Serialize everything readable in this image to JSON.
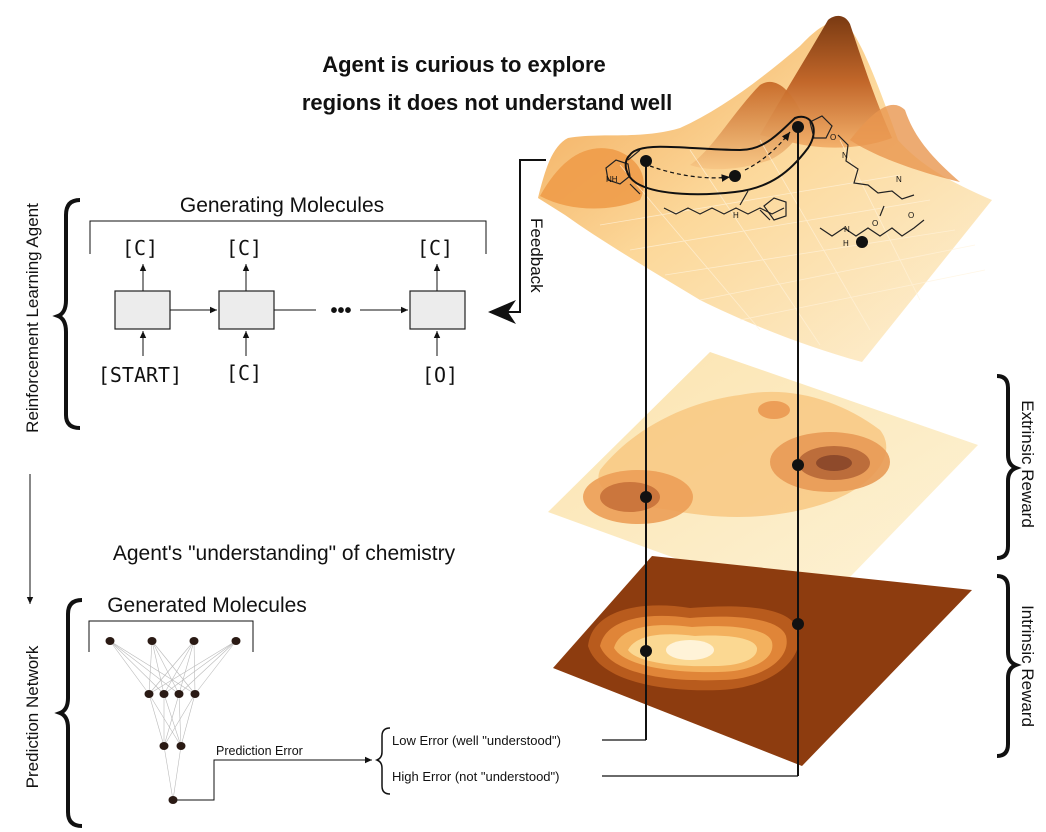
{
  "headline": {
    "line1": "Agent is curious to explore",
    "line2": "regions it does not understand well"
  },
  "rl_agent": {
    "side_label": "Reinforcement Learning Agent",
    "title": "Generating Molecules",
    "outputs": [
      "[C]",
      "[C]",
      "[C]"
    ],
    "inputs": [
      "[START]",
      "[C]",
      "[O]"
    ],
    "ellipsis": "•••"
  },
  "feedback_label": "Feedback",
  "understanding_caption": "Agent's \"understanding\" of chemistry",
  "prediction_network": {
    "side_label": "Prediction Network",
    "title": "Generated Molecules",
    "error_label": "Prediction Error",
    "low_error": "Low Error (well \"understood\")",
    "high_error": "High Error (not \"understood\")"
  },
  "layers": {
    "extrinsic": "Extrinsic Reward",
    "intrinsic": "Intrinsic Reward"
  },
  "molecule_labels": {
    "n": "N",
    "nh": "NH",
    "h": "H",
    "o": "O"
  },
  "colors": {
    "orange_light": "#fbe7b4",
    "orange_mid": "#f2a65c",
    "orange_dark": "#b8611f",
    "brown_base": "#8b3a0e",
    "ink": "#111111"
  }
}
